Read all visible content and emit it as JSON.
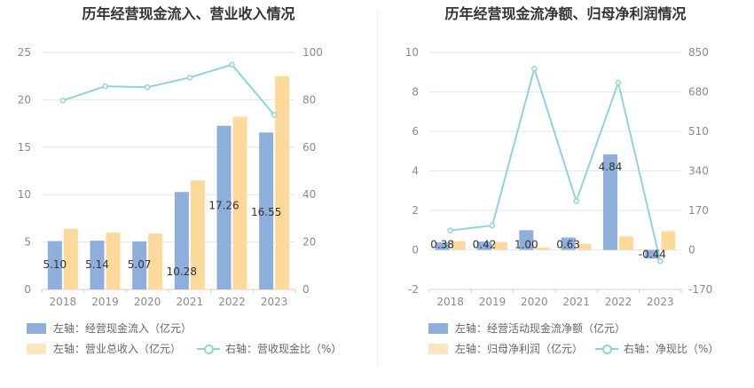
{
  "chart_data": [
    {
      "type": "bar",
      "title": "历年经营现金流入、营业收入情况",
      "categories": [
        "2018",
        "2019",
        "2020",
        "2021",
        "2022",
        "2023"
      ],
      "series": [
        {
          "name": "左轴：经营现金流入（亿元）",
          "type": "bar",
          "axis": "left",
          "color": "#8eaedc",
          "values": [
            5.1,
            5.14,
            5.07,
            10.28,
            17.26,
            16.55
          ],
          "labels": [
            "5.10",
            "5.14",
            "5.07",
            "10.28",
            "17.26",
            "16.55"
          ]
        },
        {
          "name": "左轴：营业总收入（亿元）",
          "type": "bar",
          "axis": "left",
          "color": "#fdd99a",
          "values": [
            6.4,
            6.0,
            5.9,
            11.5,
            18.2,
            22.5
          ]
        },
        {
          "name": "右轴：营收现金比（%）",
          "type": "line",
          "axis": "right",
          "color": "#8fd4dc",
          "values": [
            79.7,
            85.7,
            85.3,
            89.4,
            94.8,
            73.6
          ]
        }
      ],
      "left_axis": {
        "min": 0,
        "max": 25,
        "ticks": [
          "0",
          "5",
          "10",
          "15",
          "20",
          "25"
        ]
      },
      "right_axis": {
        "min": 0,
        "max": 100,
        "ticks": [
          "0",
          "20",
          "40",
          "60",
          "80",
          "100"
        ]
      },
      "grid": true,
      "legend_position": "bottom-left"
    },
    {
      "type": "bar",
      "title": "历年经营现金流净额、归母净利润情况",
      "categories": [
        "2018",
        "2019",
        "2020",
        "2021",
        "2022",
        "2023"
      ],
      "series": [
        {
          "name": "左轴：经营活动现金流净额（亿元）",
          "type": "bar",
          "axis": "left",
          "color": "#8eaedc",
          "values": [
            0.38,
            0.42,
            1.0,
            0.63,
            4.84,
            -0.44
          ],
          "labels": [
            "0.38",
            "0.42",
            "1.00",
            "0.63",
            "4.84",
            "-0.44"
          ]
        },
        {
          "name": "左轴：归母净利润（亿元）",
          "type": "bar",
          "axis": "left",
          "color": "#fdd99a",
          "values": [
            0.45,
            0.4,
            0.12,
            0.3,
            0.68,
            0.95
          ]
        },
        {
          "name": "右轴：净现比（%）",
          "type": "line",
          "axis": "right",
          "color": "#8fd4dc",
          "values": [
            84,
            105,
            780,
            210,
            720,
            -48
          ]
        }
      ],
      "left_axis": {
        "min": -2,
        "max": 10,
        "ticks": [
          "-2",
          "0",
          "2",
          "4",
          "6",
          "8",
          "10"
        ]
      },
      "right_axis": {
        "min": -170,
        "max": 850,
        "ticks": [
          "-170",
          "0",
          "170",
          "340",
          "510",
          "680",
          "850"
        ]
      },
      "grid": true,
      "legend_position": "bottom-left"
    }
  ]
}
